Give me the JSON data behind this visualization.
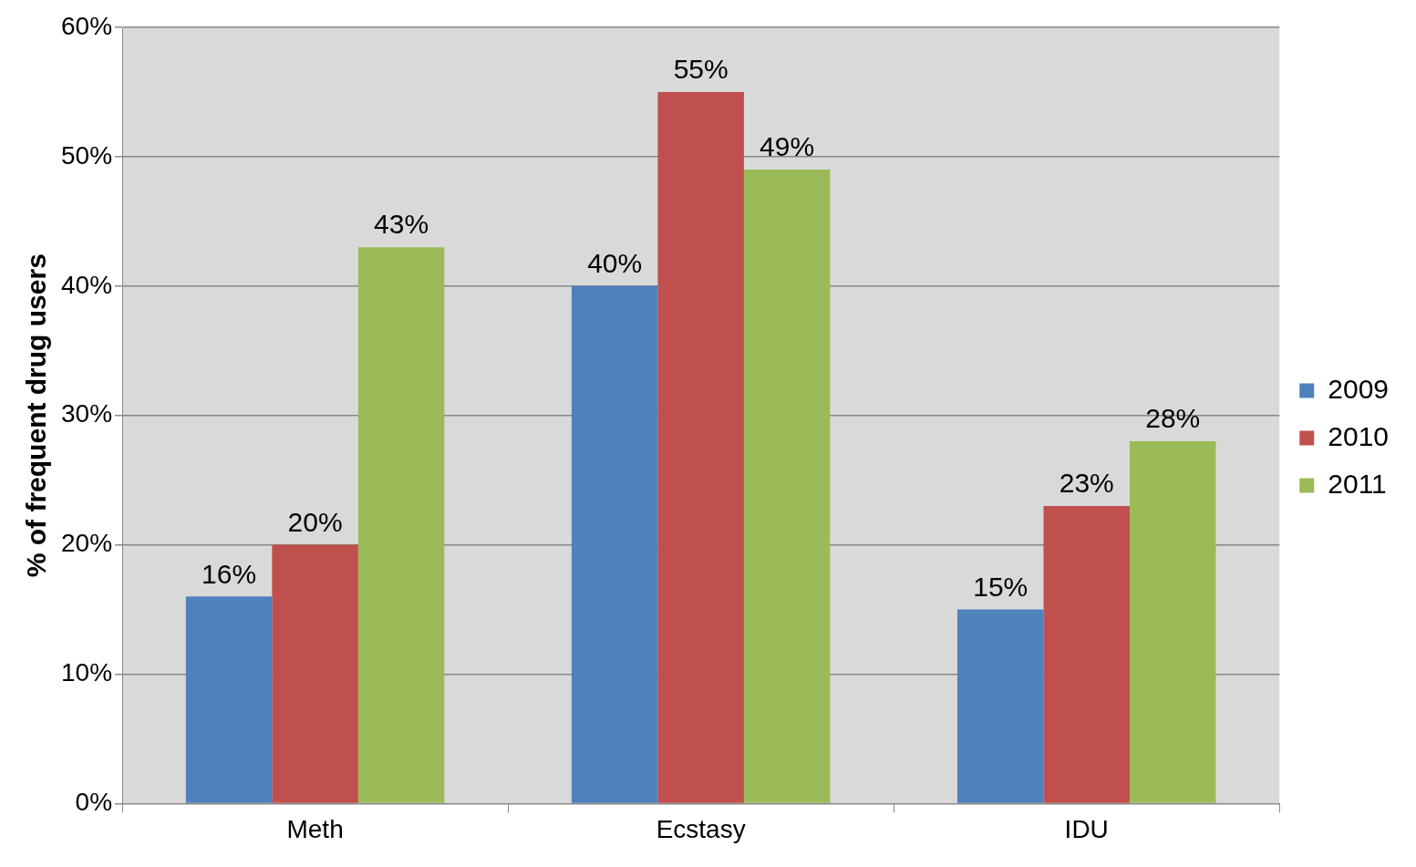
{
  "chart_data": {
    "type": "bar",
    "ylabel": "% of frequent drug users",
    "categories": [
      "Meth",
      "Ecstasy",
      "IDU"
    ],
    "series": [
      {
        "name": "2009",
        "color": "#4f81bd",
        "values": [
          16,
          40,
          15
        ],
        "value_labels": [
          "16%",
          "40%",
          "15%"
        ]
      },
      {
        "name": "2010",
        "color": "#c0504d",
        "values": [
          20,
          55,
          23
        ],
        "value_labels": [
          "20%",
          "55%",
          "23%"
        ]
      },
      {
        "name": "2011",
        "color": "#9bbb59",
        "values": [
          43,
          49,
          28
        ],
        "value_labels": [
          "43%",
          "49%",
          "28%"
        ]
      }
    ],
    "ylim": [
      0,
      60
    ],
    "yticks": [
      {
        "value": 0,
        "label": "0%"
      },
      {
        "value": 10,
        "label": "10%"
      },
      {
        "value": 20,
        "label": "20%"
      },
      {
        "value": 30,
        "label": "30%"
      },
      {
        "value": 40,
        "label": "40%"
      },
      {
        "value": 50,
        "label": "50%"
      },
      {
        "value": 60,
        "label": "60%"
      }
    ],
    "grid": "y",
    "legend": "right"
  }
}
